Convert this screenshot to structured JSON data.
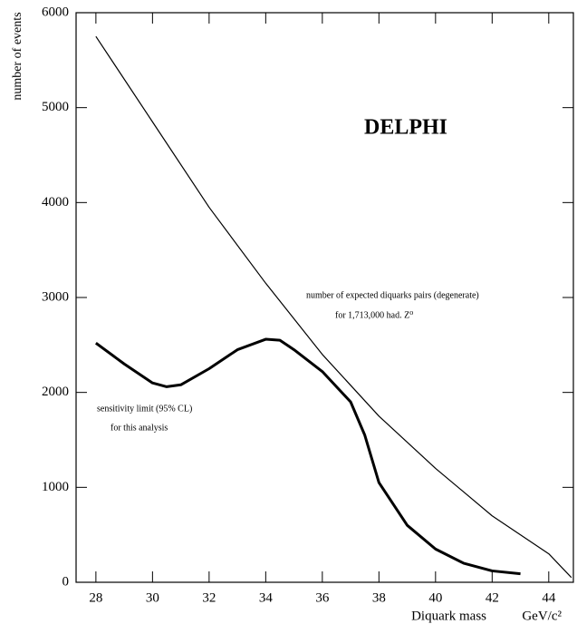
{
  "chart_data": {
    "type": "line",
    "title": "DELPHI",
    "y_label": "number of events",
    "x_label": "Diquark mass",
    "x_unit": "GeV/c²",
    "annotations": [
      "number of expected diquarks pairs (degenerate)",
      "for 1,713,000 had. Z⁰",
      "sensitivity limit (95% CL)",
      "for this analysis"
    ],
    "xlim": [
      27.3,
      44.87
    ],
    "xticks": [
      28,
      30,
      32,
      34,
      36,
      38,
      40,
      42,
      44
    ],
    "ylim": [
      0,
      6000
    ],
    "yticks": [
      0,
      1000,
      2000,
      3000,
      4000,
      5000,
      6000
    ],
    "series": [
      {
        "color": "#000000",
        "width": 1.2,
        "x": [
          28,
          30,
          32,
          34,
          36,
          38,
          40,
          42,
          44,
          44.8
        ],
        "values": [
          5750,
          4850,
          3950,
          3150,
          2400,
          1750,
          1200,
          700,
          300,
          50
        ]
      },
      {
        "color": "#000000",
        "width": 3,
        "x": [
          28,
          29,
          30,
          30.5,
          31,
          32,
          33,
          34,
          34.5,
          35,
          36,
          37,
          37.5,
          38,
          39,
          40,
          41,
          42,
          43
        ],
        "values": [
          2520,
          2300,
          2100,
          2060,
          2080,
          2250,
          2450,
          2560,
          2550,
          2450,
          2220,
          1900,
          1550,
          1050,
          600,
          350,
          200,
          120,
          90
        ]
      }
    ]
  }
}
